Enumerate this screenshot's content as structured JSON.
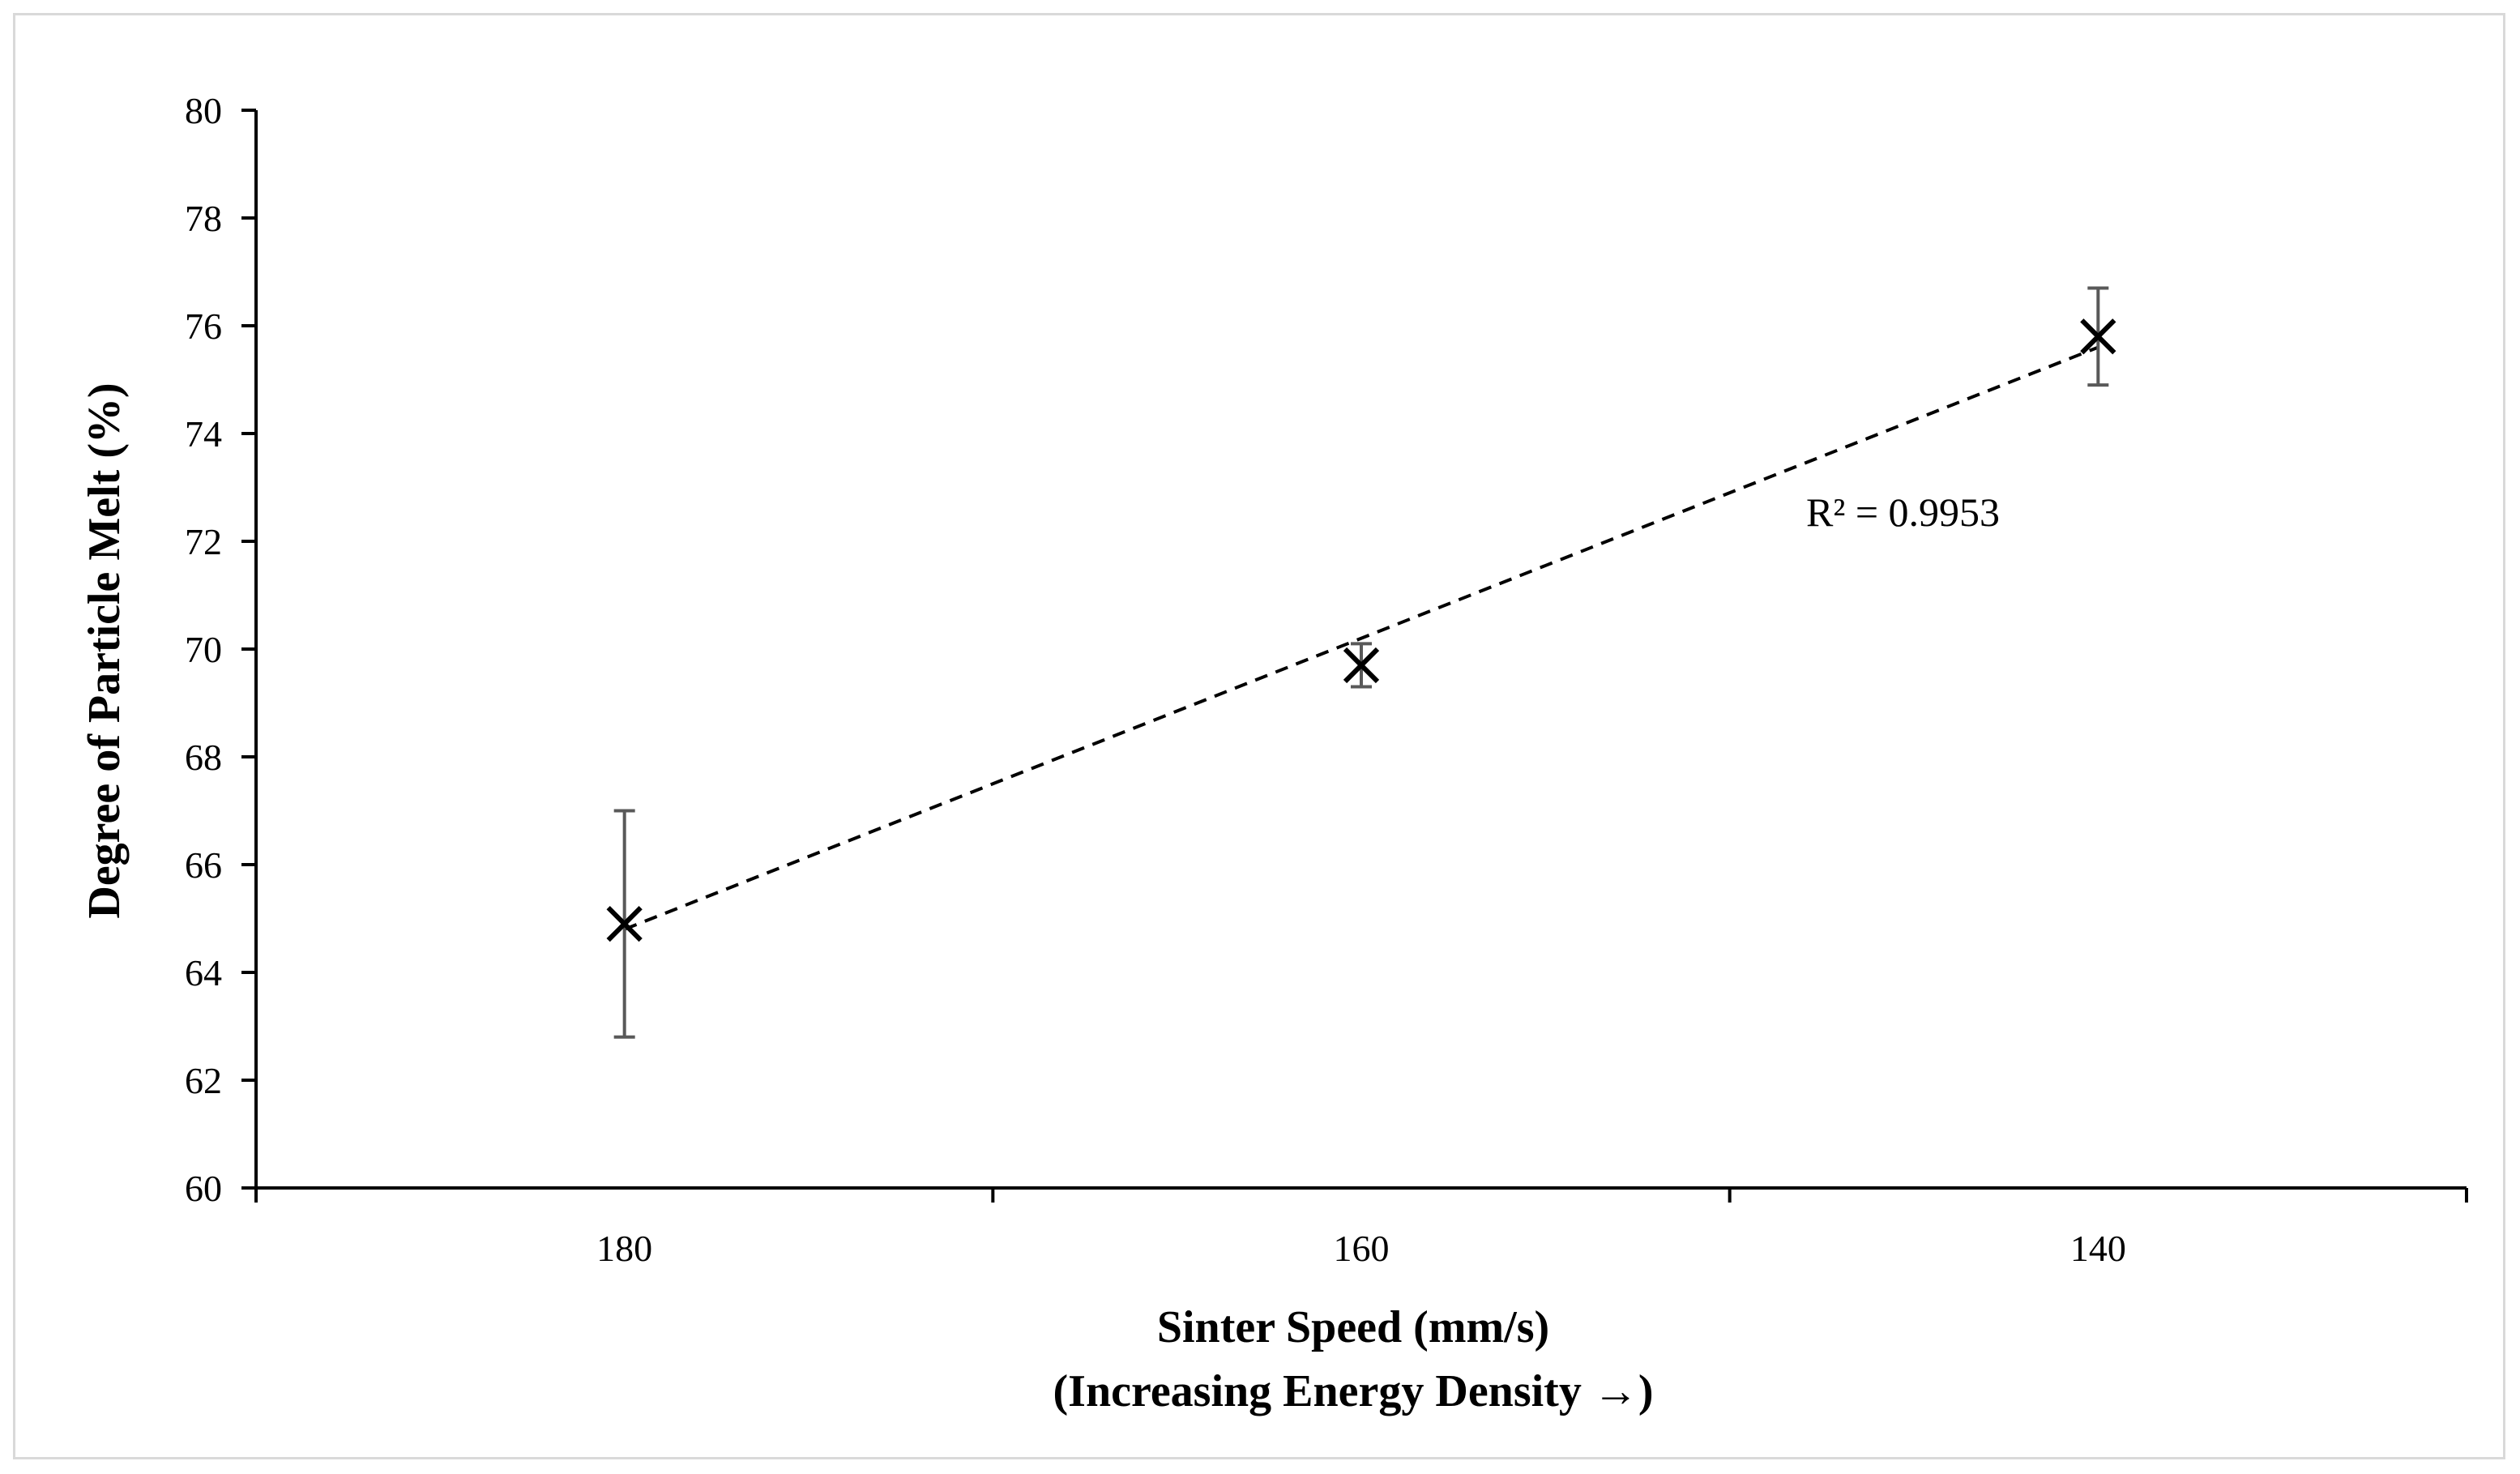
{
  "chart_data": {
    "type": "scatter",
    "title": "",
    "xlabel": "Sinter Speed (mm/s)",
    "xlabel_line2": "(Increasing Energy Density →)",
    "ylabel": "Degree of Particle Melt (%)",
    "categories": [
      "180",
      "160",
      "140"
    ],
    "ylim": [
      60,
      80
    ],
    "y_ticks": [
      60,
      62,
      64,
      66,
      68,
      70,
      72,
      74,
      76,
      78,
      80
    ],
    "y_tick_labels": [
      "60",
      "62",
      "64",
      "66",
      "68",
      "70",
      "72",
      "74",
      "76",
      "78",
      "80"
    ],
    "grid": false,
    "legend": "none",
    "marker": "x",
    "series": [
      {
        "name": "Degree of Particle Melt",
        "values": [
          64.9,
          69.7,
          75.8
        ],
        "error": [
          2.1,
          0.4,
          0.9
        ]
      }
    ],
    "trendline": {
      "type": "linear",
      "style": "dashed",
      "start": [
        1,
        64.8
      ],
      "end": [
        3,
        75.6
      ],
      "r2_label": "R² = 0.9953"
    },
    "colors": {
      "marker": "#000000",
      "error_bar": "#595959",
      "axis": "#000000",
      "trendline": "#000000",
      "frame": "#d9d9d9"
    }
  }
}
